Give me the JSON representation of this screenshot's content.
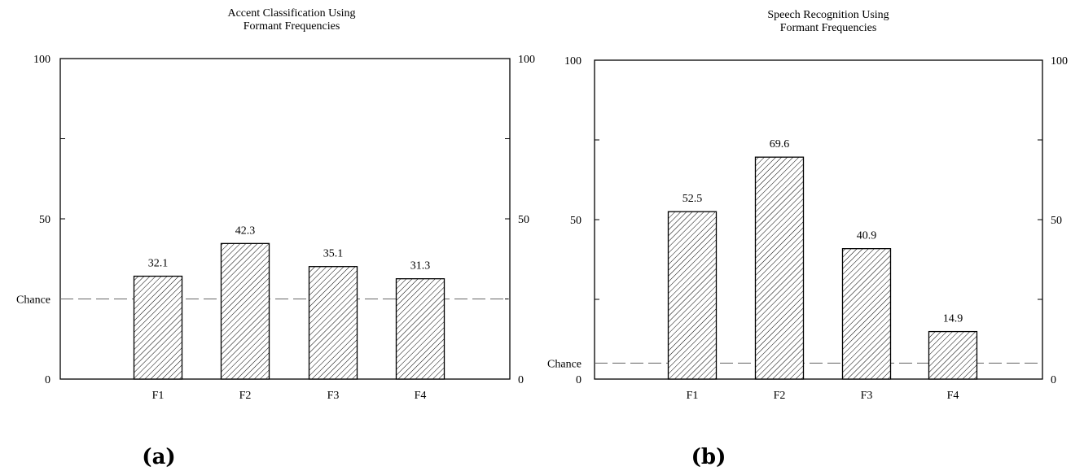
{
  "chart_data": [
    {
      "type": "bar",
      "title_lines": [
        "Accent Classification Using",
        "Formant Frequencies"
      ],
      "categories": [
        "F1",
        "F2",
        "F3",
        "F4"
      ],
      "values": [
        32.1,
        42.3,
        35.1,
        31.3
      ],
      "value_labels": [
        "32.1",
        "42.3",
        "35.1",
        "31.3"
      ],
      "ylim": [
        0,
        100
      ],
      "left_ticks": [
        "0",
        "50",
        "100"
      ],
      "right_ticks": [
        "0",
        "50",
        "100"
      ],
      "chance": {
        "label": "Chance",
        "value": 25
      },
      "caption": "(a)",
      "bar_fill": "hatched",
      "xlabel": "",
      "ylabel": ""
    },
    {
      "type": "bar",
      "title_lines": [
        "Speech Recognition Using",
        "Formant Frequencies"
      ],
      "categories": [
        "F1",
        "F2",
        "F3",
        "F4"
      ],
      "values": [
        52.5,
        69.6,
        40.9,
        14.9
      ],
      "value_labels": [
        "52.5",
        "69.6",
        "40.9",
        "14.9"
      ],
      "ylim": [
        0,
        100
      ],
      "left_ticks": [
        "0",
        "50",
        "100"
      ],
      "right_ticks": [
        "0",
        "50",
        "100"
      ],
      "chance": {
        "label": "Chance",
        "value": 5
      },
      "caption": "(b)",
      "bar_fill": "hatched",
      "xlabel": "",
      "ylabel": ""
    }
  ]
}
